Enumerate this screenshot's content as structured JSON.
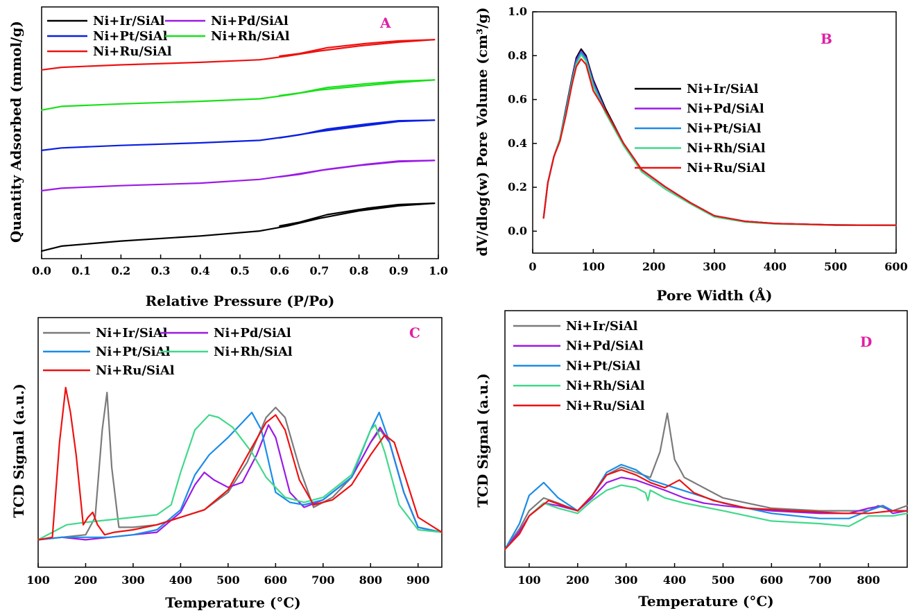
{
  "colors": {
    "A": [
      "#000000",
      "#9b19e6",
      "#0a1fe0",
      "#18e01a",
      "#ee1111"
    ],
    "B": [
      "#000000",
      "#9b19e6",
      "#1a8ce8",
      "#3fd98a",
      "#ee1111"
    ],
    "C": [
      "#7a7a7a",
      "#9b19e6",
      "#1a8ce8",
      "#3fd98a",
      "#ee1111"
    ],
    "D": [
      "#7a7a7a",
      "#9b19e6",
      "#1a8ce8",
      "#3fd98a",
      "#ee1111"
    ],
    "panel_label": "#e01fa4"
  },
  "chart_data": [
    {
      "id": "A",
      "type": "line",
      "panel_label": "A",
      "xlabel": "Relative Pressure (P/Po)",
      "ylabel": "Quantity Adsorbed (mmol/g)",
      "xlim": [
        0,
        1
      ],
      "ylim": [
        0,
        1
      ],
      "xticks": [
        "0.0",
        "0.1",
        "0.2",
        "0.3",
        "0.4",
        "0.5",
        "0.6",
        "0.7",
        "0.8",
        "0.9",
        "1.0"
      ],
      "legend_layout": "two-column, top-left",
      "series": [
        {
          "name": "Ni+Ir/SiAl",
          "x": [
            0.0,
            0.05,
            0.2,
            0.4,
            0.55,
            0.62,
            0.7,
            0.8,
            0.9,
            0.99
          ],
          "y": [
            0.03,
            0.05,
            0.07,
            0.09,
            0.11,
            0.13,
            0.16,
            0.19,
            0.21,
            0.22
          ],
          "x_desorption": [
            0.99,
            0.9,
            0.82,
            0.72,
            0.65,
            0.6
          ],
          "y_desorption": [
            0.22,
            0.215,
            0.2,
            0.175,
            0.145,
            0.13
          ]
        },
        {
          "name": "Ni+Pd/SiAl",
          "x": [
            0.0,
            0.05,
            0.2,
            0.4,
            0.55,
            0.62,
            0.7,
            0.8,
            0.9,
            0.99
          ],
          "y": [
            0.27,
            0.28,
            0.29,
            0.3,
            0.315,
            0.33,
            0.35,
            0.37,
            0.385,
            0.39
          ],
          "x_desorption": [
            0.99,
            0.9,
            0.82,
            0.72,
            0.65,
            0.6
          ],
          "y_desorption": [
            0.39,
            0.388,
            0.375,
            0.355,
            0.335,
            0.325
          ]
        },
        {
          "name": "Ni+Pt/SiAl",
          "x": [
            0.0,
            0.05,
            0.2,
            0.4,
            0.55,
            0.62,
            0.7,
            0.8,
            0.9,
            0.99
          ],
          "y": [
            0.43,
            0.44,
            0.45,
            0.46,
            0.47,
            0.485,
            0.505,
            0.525,
            0.545,
            0.55
          ],
          "x_desorption": [
            0.99,
            0.9,
            0.82,
            0.72,
            0.65,
            0.6
          ],
          "y_desorption": [
            0.55,
            0.548,
            0.535,
            0.515,
            0.492,
            0.48
          ]
        },
        {
          "name": "Ni+Rh/SiAl",
          "x": [
            0.0,
            0.05,
            0.2,
            0.4,
            0.55,
            0.62,
            0.7,
            0.8,
            0.9,
            0.99
          ],
          "y": [
            0.59,
            0.605,
            0.615,
            0.625,
            0.635,
            0.65,
            0.67,
            0.685,
            0.7,
            0.71
          ],
          "x_desorption": [
            0.99,
            0.9,
            0.82,
            0.72,
            0.65,
            0.6
          ],
          "y_desorption": [
            0.71,
            0.705,
            0.695,
            0.68,
            0.658,
            0.648
          ]
        },
        {
          "name": "Ni+Ru/SiAl",
          "x": [
            0.0,
            0.05,
            0.2,
            0.4,
            0.55,
            0.62,
            0.7,
            0.8,
            0.9,
            0.99
          ],
          "y": [
            0.75,
            0.76,
            0.77,
            0.78,
            0.79,
            0.805,
            0.825,
            0.845,
            0.86,
            0.87
          ],
          "x_desorption": [
            0.99,
            0.9,
            0.82,
            0.72,
            0.65,
            0.6
          ],
          "y_desorption": [
            0.87,
            0.865,
            0.855,
            0.838,
            0.815,
            0.805
          ]
        }
      ]
    },
    {
      "id": "B",
      "type": "line",
      "panel_label": "B",
      "xlabel": "Pore Width (Å)",
      "ylabel": "dV/dlog(w) Pore Volume (cm³/g)",
      "xlim": [
        0,
        600
      ],
      "ylim": [
        -0.1,
        1.0
      ],
      "xticks": [
        "0",
        "100",
        "200",
        "300",
        "400",
        "500",
        "600"
      ],
      "yticks": [
        "0.0",
        "0.2",
        "0.4",
        "0.6",
        "0.8",
        "1.0"
      ],
      "legend_layout": "right-center",
      "series": [
        {
          "name": "Ni+Ir/SiAl",
          "x": [
            18,
            25,
            35,
            45,
            55,
            65,
            72,
            80,
            88,
            100,
            120,
            150,
            180,
            220,
            260,
            300,
            350,
            400,
            500,
            600
          ],
          "y": [
            0.06,
            0.22,
            0.34,
            0.42,
            0.56,
            0.7,
            0.79,
            0.83,
            0.8,
            0.69,
            0.56,
            0.4,
            0.28,
            0.2,
            0.13,
            0.07,
            0.045,
            0.035,
            0.028,
            0.027
          ]
        },
        {
          "name": "Ni+Pd/SiAl",
          "x": [
            18,
            25,
            35,
            45,
            55,
            65,
            72,
            80,
            88,
            100,
            120,
            150,
            180,
            220,
            260,
            300,
            350,
            400,
            500,
            600
          ],
          "y": [
            0.06,
            0.22,
            0.34,
            0.42,
            0.55,
            0.69,
            0.78,
            0.82,
            0.79,
            0.68,
            0.55,
            0.4,
            0.28,
            0.2,
            0.13,
            0.07,
            0.045,
            0.035,
            0.028,
            0.027
          ]
        },
        {
          "name": "Ni+Pt/SiAl",
          "x": [
            18,
            25,
            35,
            45,
            55,
            65,
            72,
            80,
            88,
            100,
            120,
            150,
            180,
            220,
            260,
            300,
            350,
            400,
            500,
            600
          ],
          "y": [
            0.06,
            0.22,
            0.34,
            0.42,
            0.55,
            0.69,
            0.77,
            0.815,
            0.785,
            0.67,
            0.55,
            0.4,
            0.28,
            0.2,
            0.13,
            0.07,
            0.045,
            0.035,
            0.028,
            0.027
          ]
        },
        {
          "name": "Ni+Rh/SiAl",
          "x": [
            18,
            25,
            35,
            45,
            55,
            65,
            72,
            80,
            88,
            100,
            120,
            150,
            180,
            220,
            260,
            300,
            350,
            400,
            500,
            600
          ],
          "y": [
            0.06,
            0.22,
            0.34,
            0.42,
            0.54,
            0.68,
            0.76,
            0.805,
            0.775,
            0.66,
            0.54,
            0.39,
            0.27,
            0.19,
            0.125,
            0.065,
            0.042,
            0.033,
            0.027,
            0.026
          ]
        },
        {
          "name": "Ni+Ru/SiAl",
          "x": [
            18,
            25,
            35,
            45,
            55,
            65,
            72,
            80,
            88,
            100,
            120,
            150,
            180,
            220,
            260,
            300,
            350,
            400,
            500,
            600
          ],
          "y": [
            0.06,
            0.22,
            0.34,
            0.41,
            0.53,
            0.67,
            0.75,
            0.785,
            0.76,
            0.64,
            0.55,
            0.4,
            0.28,
            0.2,
            0.13,
            0.07,
            0.045,
            0.035,
            0.028,
            0.027
          ]
        }
      ]
    },
    {
      "id": "C",
      "type": "line",
      "panel_label": "C",
      "xlabel": "Temperature (°C)",
      "ylabel": "TCD Signal (a.u.)",
      "xlim": [
        100,
        950
      ],
      "ylim": [
        0,
        1
      ],
      "xticks": [
        "100",
        "200",
        "300",
        "400",
        "500",
        "600",
        "700",
        "800",
        "900"
      ],
      "legend_layout": "two-column, top-left",
      "series": [
        {
          "name": "Ni+Ir/SiAl",
          "x": [
            100,
            150,
            200,
            220,
            235,
            245,
            255,
            270,
            300,
            350,
            400,
            450,
            500,
            540,
            580,
            600,
            620,
            650,
            680,
            720,
            760,
            800,
            820,
            840,
            870,
            900,
            950
          ],
          "y": [
            0.11,
            0.12,
            0.13,
            0.2,
            0.55,
            0.7,
            0.4,
            0.16,
            0.16,
            0.17,
            0.2,
            0.23,
            0.3,
            0.42,
            0.6,
            0.64,
            0.6,
            0.4,
            0.24,
            0.28,
            0.36,
            0.5,
            0.55,
            0.5,
            0.3,
            0.16,
            0.14
          ]
        },
        {
          "name": "Ni+Pd/SiAl",
          "x": [
            100,
            150,
            200,
            250,
            300,
            350,
            400,
            430,
            450,
            470,
            500,
            530,
            560,
            585,
            600,
            630,
            660,
            700,
            760,
            800,
            820,
            840,
            870,
            900,
            950
          ],
          "y": [
            0.11,
            0.12,
            0.11,
            0.12,
            0.13,
            0.14,
            0.22,
            0.33,
            0.38,
            0.35,
            0.32,
            0.34,
            0.45,
            0.57,
            0.52,
            0.3,
            0.24,
            0.27,
            0.36,
            0.5,
            0.56,
            0.5,
            0.3,
            0.16,
            0.14
          ]
        },
        {
          "name": "Ni+Pt/SiAl",
          "x": [
            100,
            150,
            200,
            250,
            300,
            350,
            400,
            430,
            460,
            500,
            530,
            550,
            570,
            600,
            630,
            660,
            700,
            760,
            800,
            818,
            840,
            870,
            900,
            950
          ],
          "y": [
            0.11,
            0.12,
            0.12,
            0.12,
            0.13,
            0.15,
            0.23,
            0.37,
            0.45,
            0.52,
            0.58,
            0.62,
            0.55,
            0.3,
            0.26,
            0.25,
            0.27,
            0.36,
            0.55,
            0.62,
            0.5,
            0.3,
            0.16,
            0.14
          ]
        },
        {
          "name": "Ni+Rh/SiAl",
          "x": [
            100,
            130,
            160,
            200,
            250,
            300,
            350,
            380,
            400,
            430,
            460,
            480,
            510,
            550,
            580,
            620,
            660,
            700,
            760,
            800,
            810,
            830,
            860,
            900,
            950
          ],
          "y": [
            0.11,
            0.14,
            0.17,
            0.18,
            0.19,
            0.2,
            0.21,
            0.25,
            0.38,
            0.55,
            0.61,
            0.6,
            0.56,
            0.46,
            0.36,
            0.28,
            0.26,
            0.28,
            0.37,
            0.55,
            0.57,
            0.46,
            0.25,
            0.15,
            0.14
          ]
        },
        {
          "name": "Ni+Ru/SiAl",
          "x": [
            100,
            130,
            145,
            158,
            168,
            180,
            195,
            205,
            215,
            225,
            240,
            260,
            300,
            350,
            400,
            450,
            500,
            550,
            580,
            600,
            620,
            650,
            680,
            720,
            760,
            800,
            830,
            850,
            870,
            900,
            950
          ],
          "y": [
            0.11,
            0.12,
            0.5,
            0.72,
            0.62,
            0.45,
            0.17,
            0.2,
            0.22,
            0.17,
            0.13,
            0.14,
            0.15,
            0.17,
            0.2,
            0.23,
            0.31,
            0.48,
            0.58,
            0.61,
            0.55,
            0.35,
            0.25,
            0.27,
            0.33,
            0.45,
            0.53,
            0.5,
            0.38,
            0.2,
            0.14
          ]
        }
      ]
    },
    {
      "id": "D",
      "type": "line",
      "panel_label": "D",
      "xlabel": "Temperature (°C)",
      "ylabel": "TCD Signal (a.u.)",
      "xlim": [
        50,
        880
      ],
      "ylim": [
        0,
        1
      ],
      "xticks": [
        "100",
        "200",
        "300",
        "400",
        "500",
        "600",
        "700",
        "800"
      ],
      "legend_layout": "top-left",
      "series": [
        {
          "name": "Ni+Ir/SiAl",
          "x": [
            50,
            80,
            100,
            130,
            160,
            200,
            230,
            260,
            290,
            320,
            350,
            370,
            385,
            400,
            420,
            460,
            500,
            600,
            700,
            800,
            820,
            850,
            880
          ],
          "y": [
            0.07,
            0.15,
            0.22,
            0.27,
            0.25,
            0.22,
            0.28,
            0.36,
            0.39,
            0.37,
            0.35,
            0.45,
            0.6,
            0.42,
            0.35,
            0.31,
            0.27,
            0.23,
            0.22,
            0.22,
            0.24,
            0.22,
            0.24
          ]
        },
        {
          "name": "Ni+Pd/SiAl",
          "x": [
            50,
            80,
            100,
            130,
            160,
            200,
            230,
            260,
            290,
            320,
            350,
            380,
            420,
            460,
            500,
            600,
            700,
            760,
            800,
            830,
            850,
            880
          ],
          "y": [
            0.07,
            0.14,
            0.2,
            0.25,
            0.24,
            0.22,
            0.27,
            0.33,
            0.35,
            0.34,
            0.32,
            0.3,
            0.27,
            0.25,
            0.24,
            0.22,
            0.21,
            0.21,
            0.23,
            0.24,
            0.21,
            0.22
          ]
        },
        {
          "name": "Ni+Pt/SiAl",
          "x": [
            50,
            80,
            100,
            130,
            160,
            200,
            230,
            260,
            290,
            320,
            350,
            400,
            450,
            500,
            600,
            700,
            760,
            800,
            830,
            850,
            880
          ],
          "y": [
            0.07,
            0.17,
            0.28,
            0.33,
            0.27,
            0.22,
            0.28,
            0.37,
            0.4,
            0.38,
            0.34,
            0.31,
            0.28,
            0.25,
            0.21,
            0.19,
            0.19,
            0.22,
            0.24,
            0.22,
            0.22
          ]
        },
        {
          "name": "Ni+Rh/SiAl",
          "x": [
            50,
            80,
            100,
            130,
            160,
            200,
            230,
            260,
            290,
            320,
            340,
            345,
            350,
            380,
            420,
            500,
            600,
            700,
            760,
            780,
            800,
            850,
            880
          ],
          "y": [
            0.07,
            0.13,
            0.2,
            0.25,
            0.23,
            0.21,
            0.26,
            0.3,
            0.32,
            0.31,
            0.29,
            0.26,
            0.3,
            0.27,
            0.25,
            0.22,
            0.18,
            0.17,
            0.16,
            0.18,
            0.2,
            0.2,
            0.21
          ]
        },
        {
          "name": "Ni+Ru/SiAl",
          "x": [
            50,
            80,
            100,
            140,
            170,
            200,
            230,
            260,
            290,
            320,
            350,
            380,
            410,
            440,
            480,
            550,
            650,
            750,
            800,
            850,
            880
          ],
          "y": [
            0.07,
            0.13,
            0.2,
            0.26,
            0.24,
            0.22,
            0.28,
            0.36,
            0.38,
            0.36,
            0.33,
            0.31,
            0.34,
            0.29,
            0.26,
            0.23,
            0.22,
            0.21,
            0.21,
            0.22,
            0.22
          ]
        }
      ]
    }
  ]
}
